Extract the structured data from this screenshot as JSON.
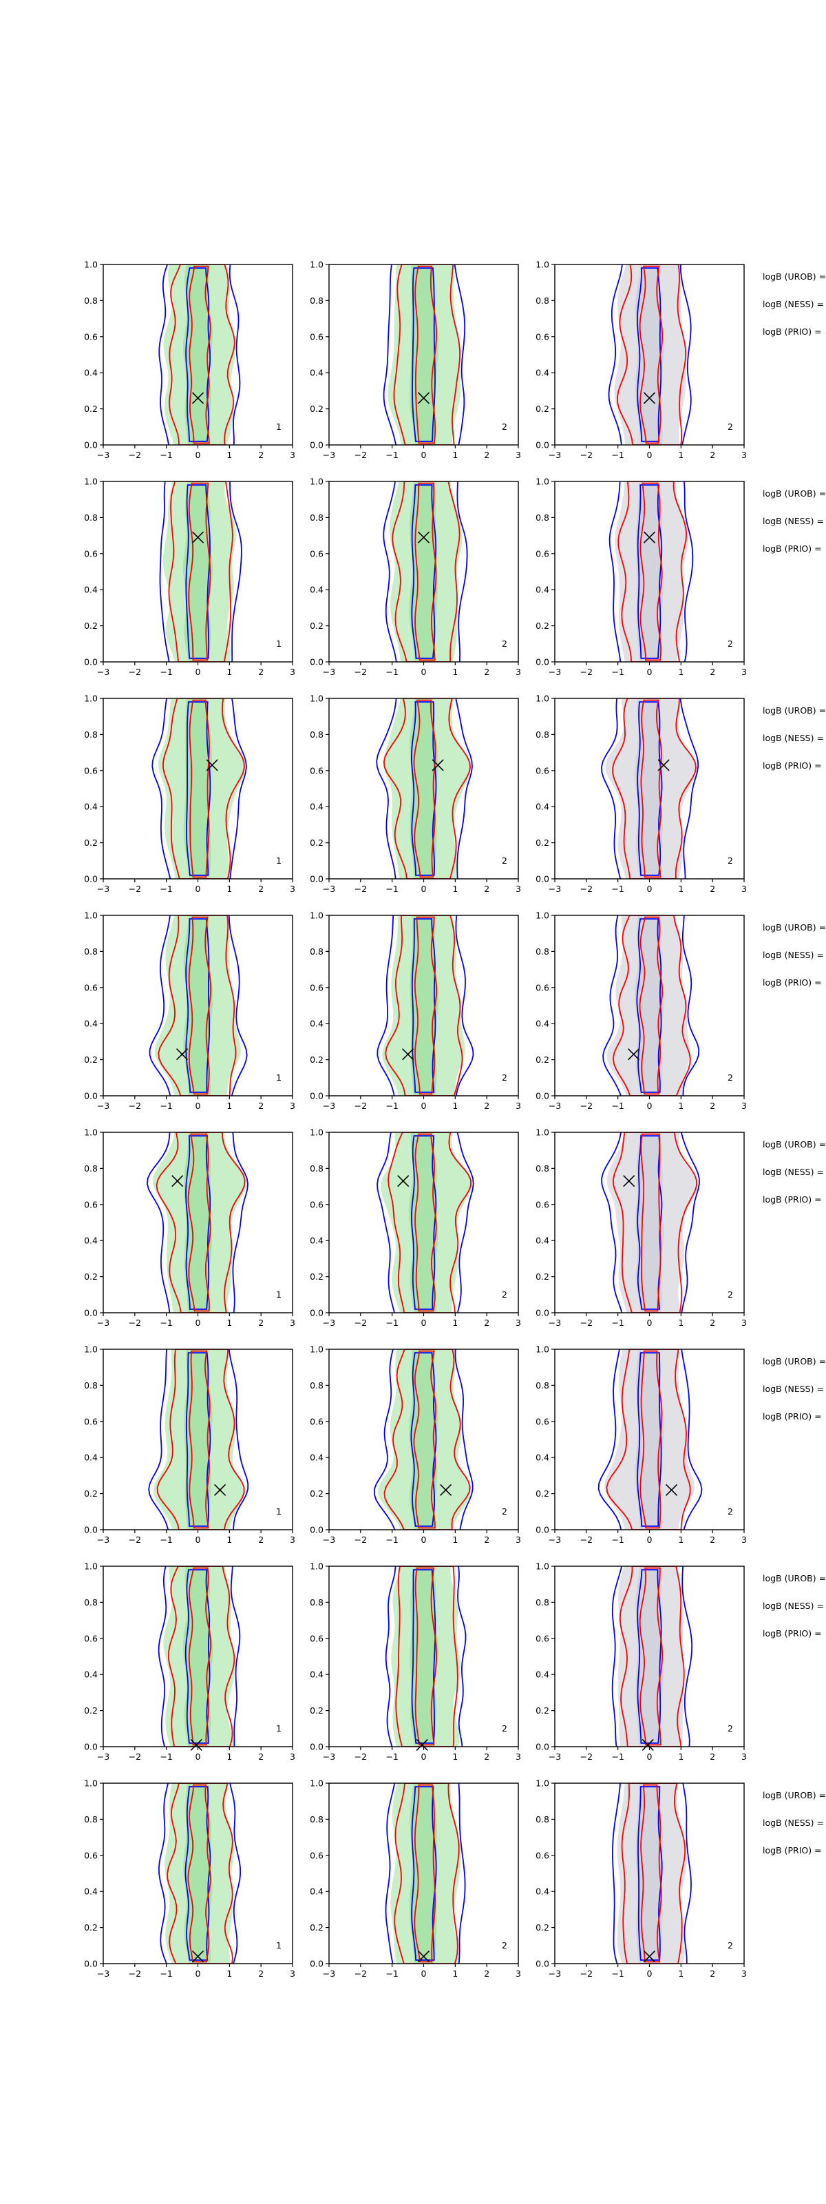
{
  "colors": {
    "blue": "#0000ff",
    "red": "#ff0000",
    "green_fill": "#c8efc8",
    "green_dark": "#8fd88f",
    "gray_fill": "#e2e2e6",
    "gray_dark": "#c7c7d6",
    "marker": "#000000"
  },
  "chart_data": {
    "type": "contour",
    "layout": "8 rows x 3 columns of panels with a text column at right",
    "xlim": [
      -3,
      3
    ],
    "ylim": [
      0,
      1
    ],
    "xticks": [
      "−3",
      "−2",
      "−1",
      "0",
      "1",
      "2",
      "3"
    ],
    "yticks": [
      "0.0",
      "0.2",
      "0.4",
      "0.6",
      "0.8",
      "1.0"
    ],
    "column_shading": [
      "green",
      "green",
      "gray"
    ],
    "side_labels": [
      "logB (UROB) =",
      "logB (NESS) =",
      "logB (PRIO) ="
    ],
    "rows": [
      {
        "marker": [
          0.0,
          0.26
        ],
        "panel_labels": [
          "1",
          "2",
          "2"
        ]
      },
      {
        "marker": [
          0.0,
          0.69
        ],
        "panel_labels": [
          "1",
          "2",
          "2"
        ]
      },
      {
        "marker": [
          0.45,
          0.63
        ],
        "panel_labels": [
          "1",
          "2",
          "2"
        ]
      },
      {
        "marker": [
          -0.5,
          0.23
        ],
        "panel_labels": [
          "1",
          "2",
          "2"
        ]
      },
      {
        "marker": [
          -0.65,
          0.73
        ],
        "panel_labels": [
          "1",
          "2",
          "2"
        ]
      },
      {
        "marker": [
          0.7,
          0.22
        ],
        "panel_labels": [
          "1",
          "2",
          "2"
        ]
      },
      {
        "marker": [
          -0.05,
          0.01
        ],
        "panel_labels": [
          "1",
          "2",
          "2"
        ]
      },
      {
        "marker": [
          0.0,
          0.04
        ],
        "panel_labels": [
          "1",
          "2",
          "2"
        ]
      }
    ]
  }
}
